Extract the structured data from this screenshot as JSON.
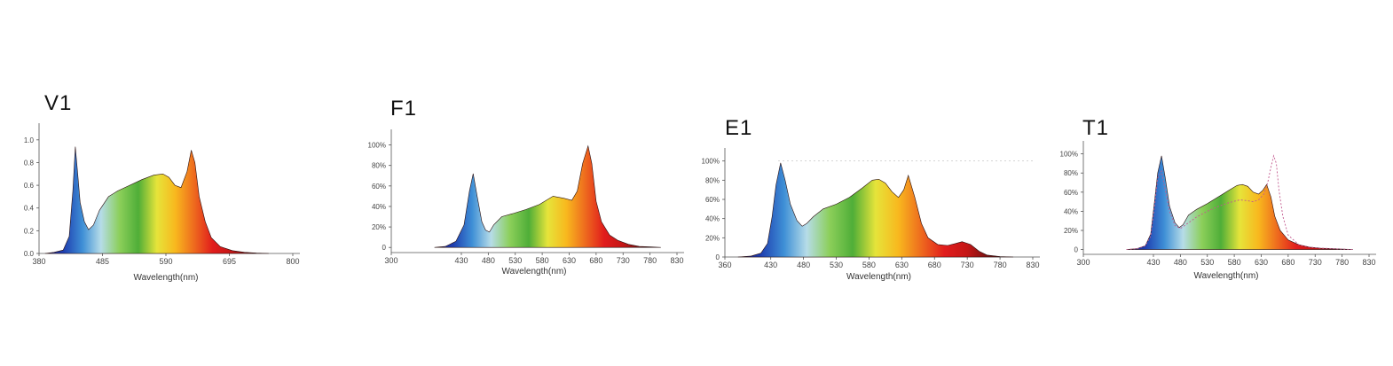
{
  "gradient_colors": [
    "#1c1a80",
    "#1f3fb0",
    "#3e8fd6",
    "#b6dce8",
    "#8ccf5a",
    "#4fae38",
    "#e6e43a",
    "#f8b81e",
    "#ee6a1e",
    "#e11c1c",
    "#c41616",
    "#6e1212",
    "#2a0a0a"
  ],
  "chart_data": [
    {
      "title": "V1",
      "type": "area",
      "xlabel": "Wavelength(nm)",
      "xlim": [
        380,
        800
      ],
      "ylim": [
        0,
        1.1
      ],
      "x_ticks": [
        "380",
        "485",
        "590",
        "695",
        "800"
      ],
      "y_ticks": [
        "0.0",
        "0.2",
        "0.4",
        "0.6",
        "0.8",
        "1.0"
      ],
      "x_tick_values": [
        380,
        485,
        590,
        695,
        800
      ],
      "y_tick_values": [
        0,
        0.2,
        0.4,
        0.6,
        0.8,
        1.0
      ],
      "series": [
        {
          "x": [
            390,
            405,
            420,
            430,
            436,
            440,
            444,
            448,
            455,
            462,
            470,
            480,
            495,
            510,
            530,
            550,
            570,
            585,
            595,
            605,
            615,
            625,
            632,
            638,
            645,
            655,
            665,
            680,
            700,
            720,
            740,
            760
          ],
          "y": [
            0.0,
            0.01,
            0.03,
            0.15,
            0.55,
            0.94,
            0.7,
            0.45,
            0.28,
            0.21,
            0.25,
            0.38,
            0.5,
            0.55,
            0.6,
            0.65,
            0.69,
            0.7,
            0.67,
            0.6,
            0.58,
            0.72,
            0.91,
            0.8,
            0.5,
            0.28,
            0.14,
            0.06,
            0.025,
            0.01,
            0.004,
            0.0
          ]
        }
      ]
    },
    {
      "title": "F1",
      "type": "area",
      "xlabel": "Wavelength(nm)",
      "xlim": [
        300,
        830
      ],
      "ylim": [
        -5,
        110
      ],
      "x_ticks": [
        "300",
        "430",
        "480",
        "530",
        "580",
        "630",
        "680",
        "730",
        "780",
        "830"
      ],
      "y_ticks": [
        "0",
        "20%",
        "40%",
        "60%",
        "80%",
        "100%"
      ],
      "x_tick_values": [
        300,
        430,
        480,
        530,
        580,
        630,
        680,
        730,
        780,
        830
      ],
      "y_tick_values": [
        0,
        20,
        40,
        60,
        80,
        100
      ],
      "series": [
        {
          "x": [
            380,
            400,
            420,
            435,
            445,
            452,
            460,
            468,
            475,
            482,
            490,
            505,
            525,
            550,
            575,
            600,
            620,
            635,
            645,
            655,
            665,
            672,
            680,
            690,
            705,
            720,
            740,
            760,
            780,
            800
          ],
          "y": [
            0,
            1,
            6,
            22,
            55,
            72,
            48,
            25,
            17,
            15,
            22,
            30,
            33,
            37,
            42,
            50,
            48,
            46,
            55,
            82,
            99,
            82,
            45,
            25,
            12,
            7,
            3,
            1,
            0.5,
            0
          ]
        }
      ]
    },
    {
      "title": "E1",
      "type": "area",
      "xlabel": "Wavelength(nm)",
      "xlim": [
        360,
        830
      ],
      "ylim": [
        0,
        108
      ],
      "x_ticks": [
        "360",
        "430",
        "480",
        "530",
        "580",
        "630",
        "680",
        "730",
        "780",
        "830"
      ],
      "y_ticks": [
        "0",
        "20%",
        "40%",
        "60%",
        "80%",
        "100%"
      ],
      "x_tick_values": [
        360,
        430,
        480,
        530,
        580,
        630,
        680,
        730,
        780,
        830
      ],
      "y_tick_values": [
        0,
        20,
        40,
        60,
        80,
        100
      ],
      "series": [
        {
          "x": [
            380,
            400,
            415,
            425,
            432,
            438,
            445,
            452,
            460,
            470,
            478,
            485,
            495,
            510,
            530,
            550,
            570,
            585,
            595,
            605,
            615,
            625,
            633,
            640,
            650,
            660,
            670,
            685,
            700,
            712,
            722,
            735,
            748,
            760,
            780,
            800
          ],
          "y": [
            0,
            1,
            4,
            14,
            42,
            75,
            98,
            80,
            55,
            38,
            32,
            35,
            42,
            50,
            55,
            62,
            72,
            80,
            81,
            77,
            68,
            62,
            70,
            85,
            62,
            35,
            20,
            13,
            12,
            14,
            16,
            13,
            6,
            2,
            0.5,
            0
          ]
        }
      ]
    },
    {
      "title": "T1",
      "type": "area",
      "xlabel": "Wavelength(nm)",
      "xlim": [
        300,
        830
      ],
      "ylim": [
        -5,
        108
      ],
      "x_ticks": [
        "300",
        "430",
        "480",
        "530",
        "580",
        "630",
        "680",
        "730",
        "780",
        "830"
      ],
      "y_ticks": [
        "0",
        "20%",
        "40%",
        "60%",
        "80%",
        "100%"
      ],
      "x_tick_values": [
        300,
        430,
        480,
        530,
        580,
        630,
        680,
        730,
        780,
        830
      ],
      "y_tick_values": [
        0,
        20,
        40,
        60,
        80,
        100
      ],
      "series": [
        {
          "x": [
            380,
            400,
            415,
            425,
            432,
            438,
            445,
            452,
            460,
            470,
            478,
            485,
            495,
            510,
            530,
            550,
            570,
            585,
            595,
            605,
            615,
            625,
            633,
            640,
            648,
            655,
            665,
            680,
            700,
            720,
            740,
            760,
            780,
            800
          ],
          "y": [
            0,
            1,
            4,
            16,
            50,
            80,
            98,
            75,
            45,
            28,
            23,
            26,
            36,
            42,
            48,
            55,
            62,
            67,
            68,
            66,
            60,
            58,
            62,
            68,
            55,
            35,
            20,
            10,
            5,
            2.5,
            1.5,
            1,
            0.5,
            0
          ]
        },
        {
          "x": [
            380,
            400,
            415,
            425,
            432,
            438,
            445,
            452,
            460,
            470,
            480,
            495,
            510,
            530,
            550,
            570,
            590,
            605,
            615,
            625,
            635,
            642,
            648,
            653,
            658,
            663,
            670,
            680,
            700,
            720,
            740,
            760,
            780,
            800
          ],
          "y": [
            0,
            1,
            4,
            14,
            45,
            75,
            82,
            62,
            40,
            25,
            22,
            28,
            34,
            40,
            45,
            49,
            52,
            51,
            50,
            52,
            58,
            70,
            86,
            98,
            90,
            62,
            35,
            15,
            5,
            2.5,
            1.5,
            1,
            0.5,
            0
          ]
        }
      ]
    }
  ]
}
